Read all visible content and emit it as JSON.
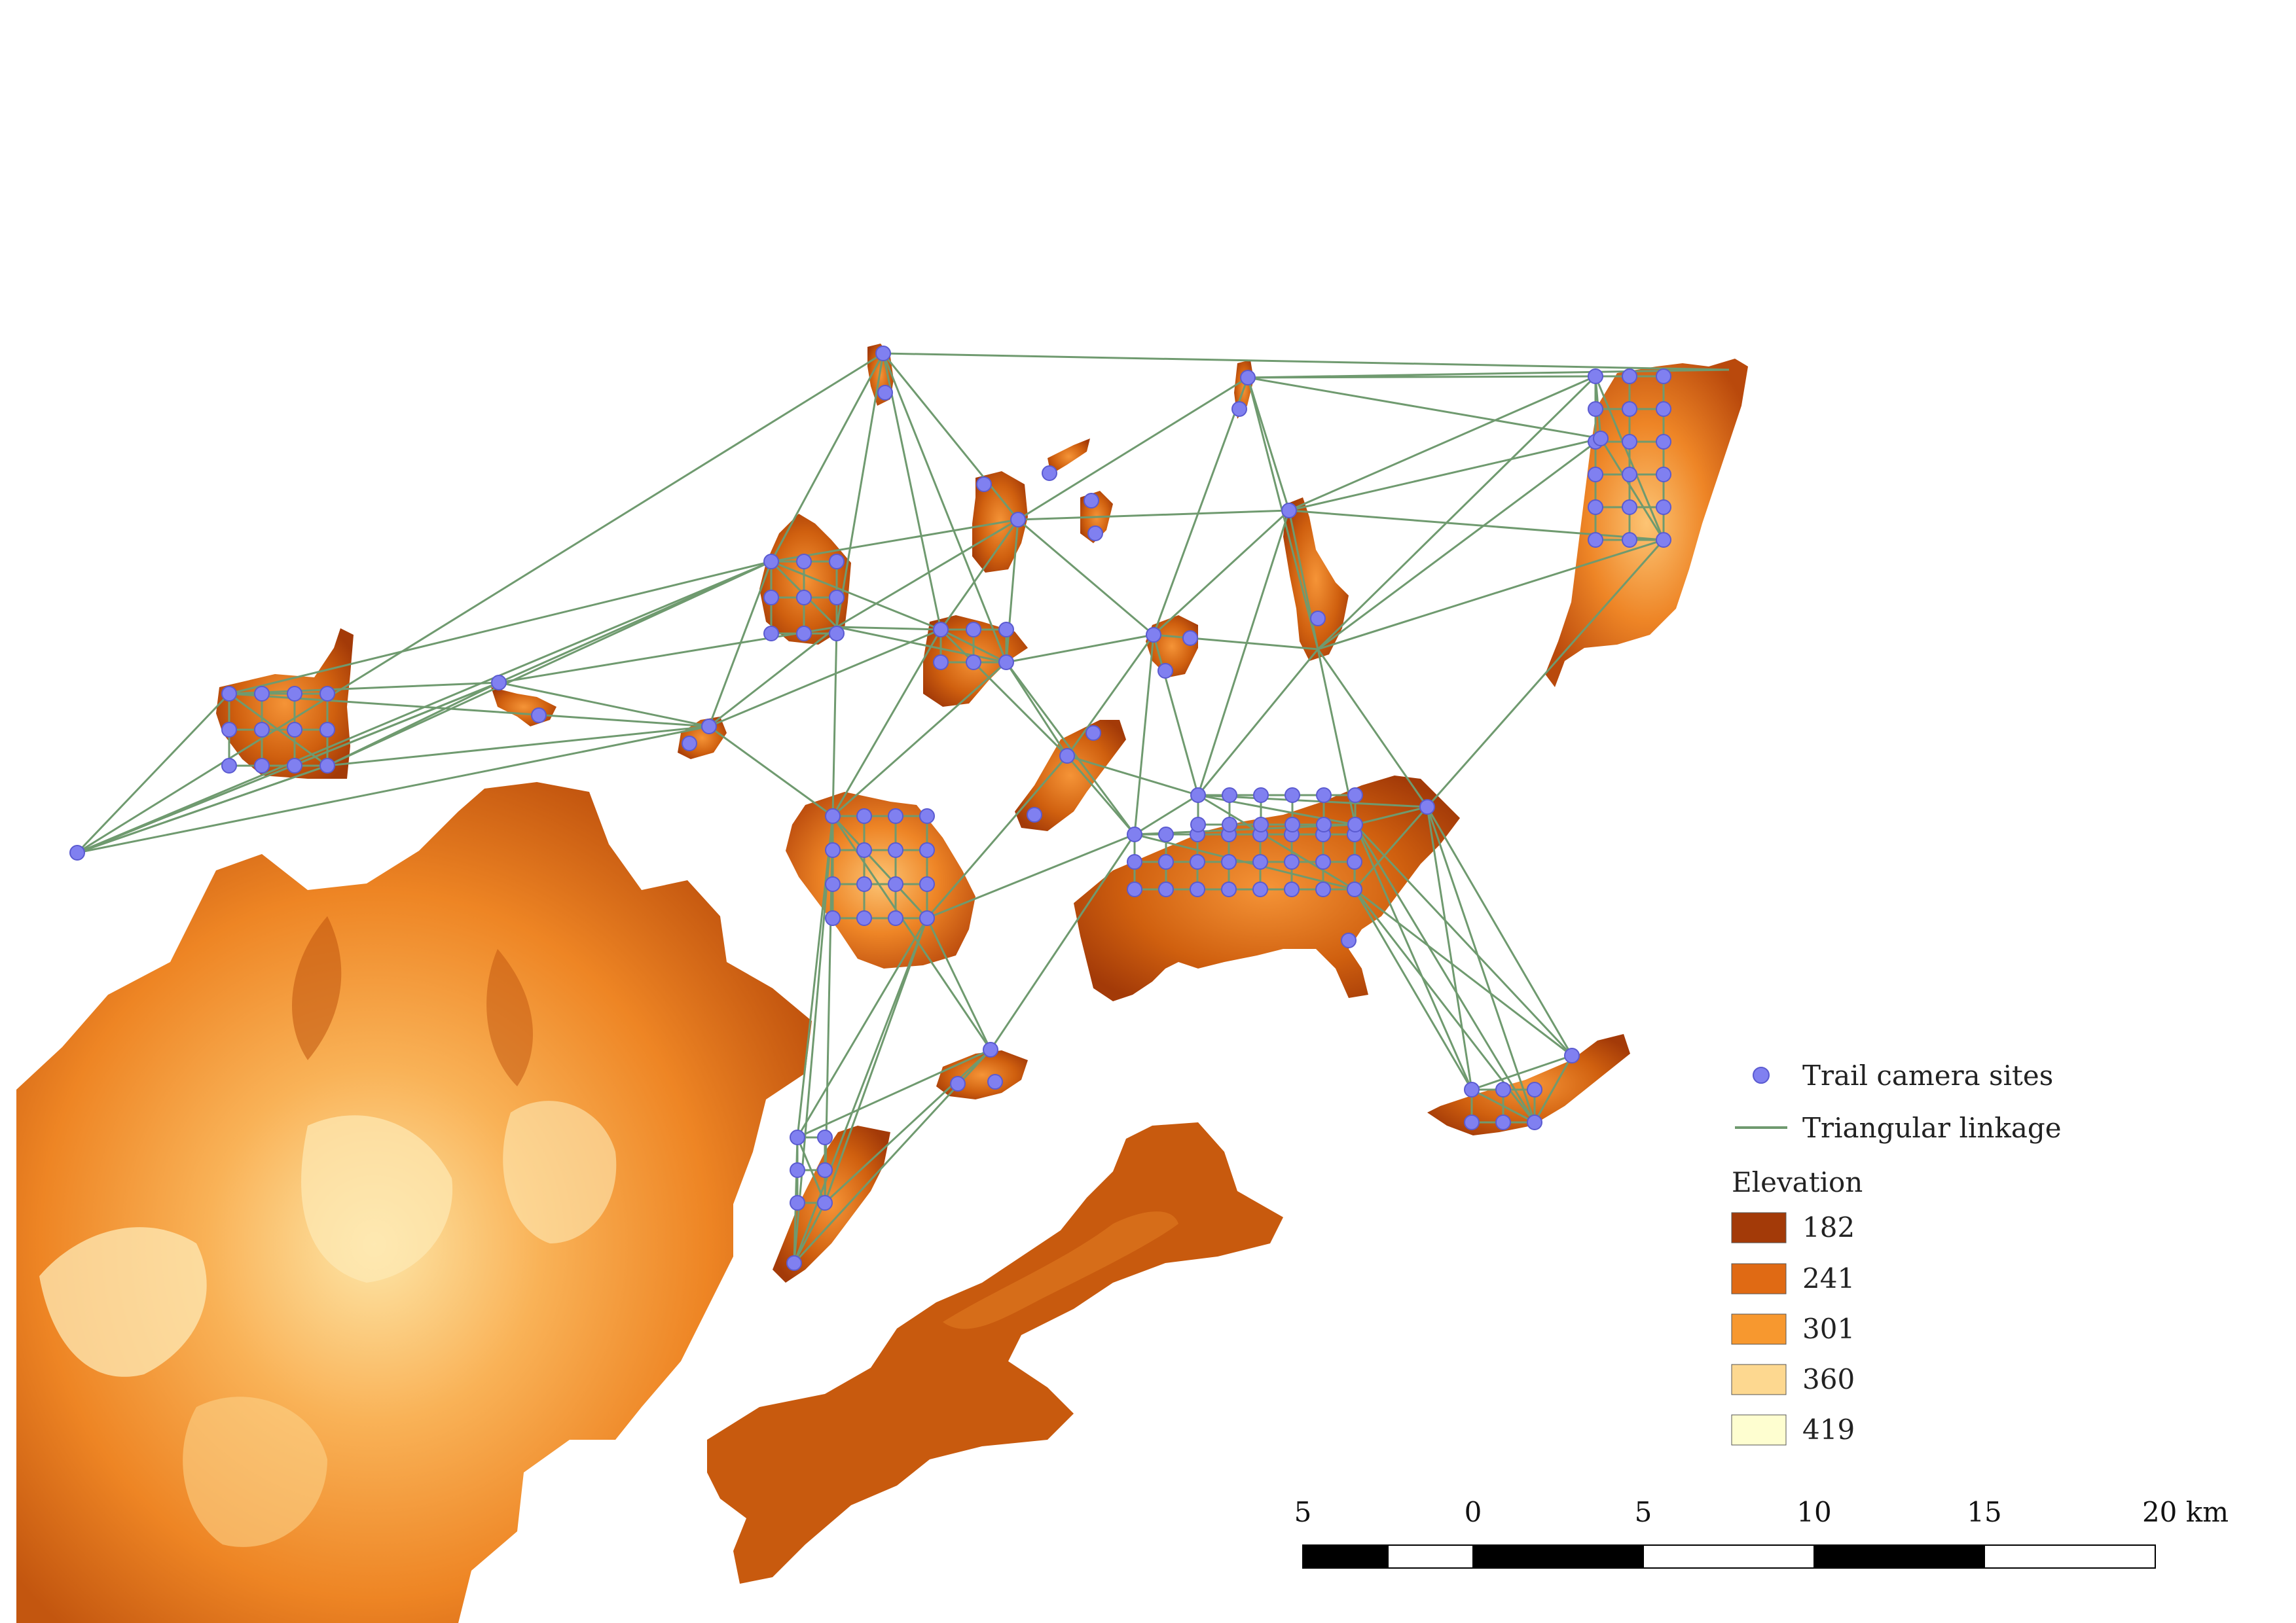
{
  "legend": {
    "sites_label": "Trail camera sites",
    "linkage_label": "Triangular linkage",
    "elevation_title": "Elevation",
    "elevation_classes": [
      {
        "label": "182",
        "color": "#a33a08"
      },
      {
        "label": "241",
        "color": "#e06a14"
      },
      {
        "label": "301",
        "color": "#f7982f"
      },
      {
        "label": "360",
        "color": "#fdd890"
      },
      {
        "label": "419",
        "color": "#fefed0"
      }
    ]
  },
  "scale_bar": {
    "labels": [
      "5",
      "0",
      "5",
      "10",
      "15",
      "20 km"
    ]
  },
  "colors": {
    "site": "#8080f0",
    "site_stroke": "#5a5ad0",
    "linkage": "#6f9a6f",
    "terrain_dark": "#a33a08",
    "terrain_mid": "#e06a14",
    "terrain_light": "#f7982f",
    "terrain_pale": "#fdd890"
  },
  "sites_icon": "circle-marker-icon",
  "linkage_icon": "line-segment-icon"
}
